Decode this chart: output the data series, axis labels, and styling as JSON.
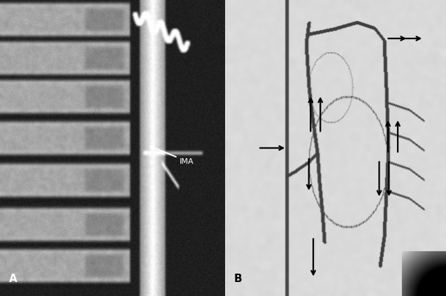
{
  "figure_width": 6.38,
  "figure_height": 4.23,
  "dpi": 100,
  "bg_color": "#000000",
  "panel_A_label": "A",
  "panel_B_label": "B",
  "label_color_A": "white",
  "label_color_B": "black",
  "IMA_label": "IMA",
  "arrow_color_A": "white",
  "arrow_color_B": "black",
  "divider_color": "white",
  "panel_split": 0.504
}
